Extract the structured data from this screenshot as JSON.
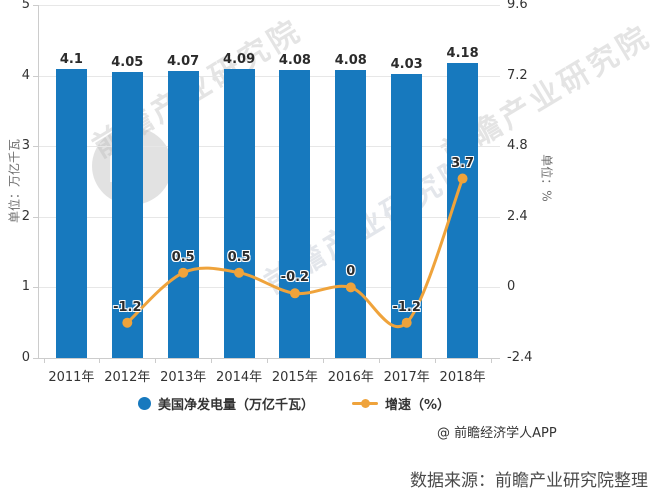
{
  "chart_data": {
    "type": "bar",
    "categories": [
      "2011年",
      "2012年",
      "2013年",
      "2014年",
      "2015年",
      "2016年",
      "2017年",
      "2018年"
    ],
    "series": [
      {
        "name": "美国净发电量（万亿千瓦）",
        "type": "bar",
        "color": "#1779be",
        "values": [
          4.1,
          4.05,
          4.07,
          4.09,
          4.08,
          4.08,
          4.03,
          4.18
        ],
        "labels": [
          "4.1",
          "4.05",
          "4.07",
          "4.09",
          "4.08",
          "4.08",
          "4.03",
          "4.18"
        ]
      },
      {
        "name": "增速（%）",
        "type": "line",
        "color": "#efa33b",
        "values": [
          null,
          -1.2,
          0.5,
          0.5,
          -0.2,
          0,
          -1.2,
          3.7
        ],
        "labels": [
          "",
          "-1.2",
          "0.5",
          "0.5",
          "-0.2",
          "0",
          "-1.2",
          "3.7"
        ]
      }
    ],
    "y_left": {
      "title": "单位：万亿千瓦",
      "ticks": [
        "5",
        "4",
        "3",
        "2",
        "1",
        "0"
      ],
      "range": [
        0,
        5
      ]
    },
    "y_right": {
      "title": "单位：%",
      "ticks": [
        "9.6",
        "7.2",
        "4.8",
        "2.4",
        "0",
        "-2.4"
      ],
      "range": [
        -2.4,
        9.6
      ]
    },
    "grid": "horizontal",
    "legend_position": "bottom"
  },
  "watermark": {
    "text": "前瞻产业研究院"
  },
  "footer": {
    "attribution": "@ 前瞻经济学人APP",
    "source": "数据来源：前瞻产业研究院整理"
  }
}
